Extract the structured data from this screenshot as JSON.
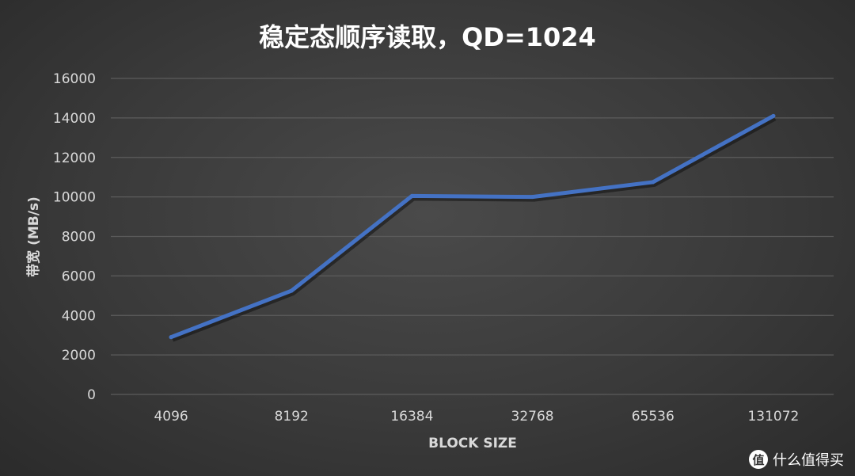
{
  "chart_data": {
    "type": "line",
    "title": "稳定态顺序读取，QD=1024",
    "xlabel": "BLOCK SIZE",
    "ylabel": "带宽 (MB/s)",
    "categories": [
      "4096",
      "8192",
      "16384",
      "32768",
      "65536",
      "131072"
    ],
    "series": [
      {
        "values": [
          2900,
          5250,
          10050,
          10000,
          10750,
          14100
        ],
        "color": "#4472c4"
      }
    ],
    "ylim": [
      0,
      16000
    ],
    "yticks": [
      0,
      2000,
      4000,
      6000,
      8000,
      10000,
      12000,
      14000,
      16000
    ],
    "grid": true,
    "legend": "none"
  },
  "watermark": {
    "icon": "值",
    "text": "什么值得买"
  },
  "colors": {
    "grid": "#5c5c5c",
    "text": "#d9d9d9",
    "title": "#ffffff",
    "line": "#4472c4"
  }
}
